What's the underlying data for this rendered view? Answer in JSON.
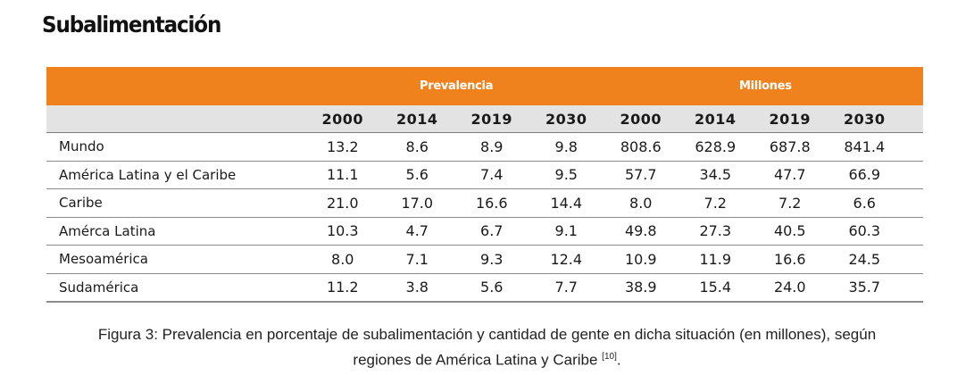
{
  "title": "Subalimentación",
  "group_headers": [
    "Prevalencia",
    "Millones"
  ],
  "columns": [
    "2000",
    "2014",
    "2019",
    "2030",
    "2000",
    "2014",
    "2019",
    "2030"
  ],
  "rows": [
    {
      "label": "Mundo",
      "values": [
        "13.2",
        "8.6",
        "8.9",
        "9.8",
        "808.6",
        "628.9",
        "687.8",
        "841.4"
      ]
    },
    {
      "label": "América Latina y el Caribe",
      "values": [
        "11.1",
        "5.6",
        "7.4",
        "9.5",
        "57.7",
        "34.5",
        "47.7",
        "66.9"
      ]
    },
    {
      "label": "Caribe",
      "values": [
        "21.0",
        "17.0",
        "16.6",
        "14.4",
        "8.0",
        "7.2",
        "7.2",
        "6.6"
      ]
    },
    {
      "label": "Amérca Latina",
      "values": [
        "10.3",
        "4.7",
        "6.7",
        "9.1",
        "49.8",
        "27.3",
        "40.5",
        "60.3"
      ]
    },
    {
      "label": "Mesoamérica",
      "values": [
        "8.0",
        "7.1",
        "9.3",
        "12.4",
        "10.9",
        "11.9",
        "16.6",
        "24.5"
      ]
    },
    {
      "label": "Sudamérica",
      "values": [
        "11.2",
        "3.8",
        "5.6",
        "7.7",
        "38.9",
        "15.4",
        "24.0",
        "35.7"
      ]
    }
  ],
  "caption": {
    "line1": "Figura 3: Prevalencia en porcentaje de subalimentación y cantidad de gente en dicha situación (en millones), según",
    "line2": "regiones de América Latina y Caribe ",
    "ref": "[10]",
    "end": "."
  },
  "colors": {
    "band": "#f0821e",
    "header_bg": "#e3e3e3"
  }
}
